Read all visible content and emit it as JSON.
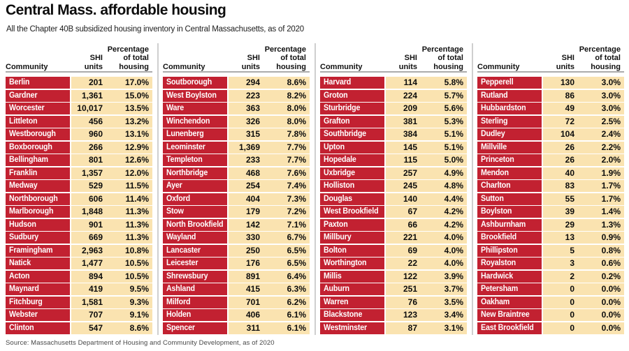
{
  "colors": {
    "row_red": "#c22131",
    "row_cream": "#fae3b0",
    "divider_gray": "#cfcfcf",
    "header_rule_gray": "#ababab"
  },
  "table_headers": {
    "community": "Community",
    "shi": [
      "SHI",
      "units"
    ],
    "pct": [
      "Percentage",
      "of total",
      "housing"
    ]
  },
  "chart_data": {
    "type": "table",
    "title": "Central Mass. affordable housing",
    "subtitle": "All the Chapter 40B subsidized housing inventory in Central Massachusetts, as of 2020",
    "columns": [
      "Community",
      "SHI units",
      "Percentage of total housing"
    ],
    "source": "Source: Massachusetts Department of Housing and Community Development, as of 2020",
    "column_groups": [
      {
        "rows": [
          [
            "Berlin",
            "201",
            "17.0%"
          ],
          [
            "Gardner",
            "1,361",
            "15.0%"
          ],
          [
            "Worcester",
            "10,017",
            "13.5%"
          ],
          [
            "Littleton",
            "456",
            "13.2%"
          ],
          [
            "Westborough",
            "960",
            "13.1%"
          ],
          [
            "Boxborough",
            "266",
            "12.9%"
          ],
          [
            "Bellingham",
            "801",
            "12.6%"
          ],
          [
            "Franklin",
            "1,357",
            "12.0%"
          ],
          [
            "Medway",
            "529",
            "11.5%"
          ],
          [
            "Northborough",
            "606",
            "11.4%"
          ],
          [
            "Marlborough",
            "1,848",
            "11.3%"
          ],
          [
            "Hudson",
            "901",
            "11.3%"
          ],
          [
            "Sudbury",
            "669",
            "11.3%"
          ],
          [
            "Framingham",
            "2,963",
            "10.8%"
          ],
          [
            "Natick",
            "1,477",
            "10.5%"
          ],
          [
            "Acton",
            "894",
            "10.5%"
          ],
          [
            "Maynard",
            "419",
            "9.5%"
          ],
          [
            "Fitchburg",
            "1,581",
            "9.3%"
          ],
          [
            "Webster",
            "707",
            "9.1%"
          ],
          [
            "Clinton",
            "547",
            "8.6%"
          ]
        ]
      },
      {
        "rows": [
          [
            "Soutborough",
            "294",
            "8.6%"
          ],
          [
            "West Boylston",
            "223",
            "8.2%"
          ],
          [
            "Ware",
            "363",
            "8.0%"
          ],
          [
            "Winchendon",
            "326",
            "8.0%"
          ],
          [
            "Lunenberg",
            "315",
            "7.8%"
          ],
          [
            "Leominster",
            "1,369",
            "7.7%"
          ],
          [
            "Templeton",
            "233",
            "7.7%"
          ],
          [
            "Northbridge",
            "468",
            "7.6%"
          ],
          [
            "Ayer",
            "254",
            "7.4%"
          ],
          [
            "Oxford",
            "404",
            "7.3%"
          ],
          [
            "Stow",
            "179",
            "7.2%"
          ],
          [
            "North Brookfield",
            "142",
            "7.1%"
          ],
          [
            "Wayland",
            "330",
            "6.7%"
          ],
          [
            "Lancaster",
            "250",
            "6.5%"
          ],
          [
            "Leicester",
            "176",
            "6.5%"
          ],
          [
            "Shrewsbury",
            "891",
            "6.4%"
          ],
          [
            "Ashland",
            "415",
            "6.3%"
          ],
          [
            "Milford",
            "701",
            "6.2%"
          ],
          [
            "Holden",
            "406",
            "6.1%"
          ],
          [
            "Spencer",
            "311",
            "6.1%"
          ]
        ]
      },
      {
        "rows": [
          [
            "Harvard",
            "114",
            "5.8%"
          ],
          [
            "Groton",
            "224",
            "5.7%"
          ],
          [
            "Sturbridge",
            "209",
            "5.6%"
          ],
          [
            "Grafton",
            "381",
            "5.3%"
          ],
          [
            "Southbridge",
            "384",
            "5.1%"
          ],
          [
            "Upton",
            "145",
            "5.1%"
          ],
          [
            "Hopedale",
            "115",
            "5.0%"
          ],
          [
            "Uxbridge",
            "257",
            "4.9%"
          ],
          [
            "Holliston",
            "245",
            "4.8%"
          ],
          [
            "Douglas",
            "140",
            "4.4%"
          ],
          [
            "West Brookfield",
            "67",
            "4.2%"
          ],
          [
            "Paxton",
            "66",
            "4.2%"
          ],
          [
            "Millbury",
            "221",
            "4.0%"
          ],
          [
            "Bolton",
            "69",
            "4.0%"
          ],
          [
            "Worthington",
            "22",
            "4.0%"
          ],
          [
            "Millis",
            "122",
            "3.9%"
          ],
          [
            "Auburn",
            "251",
            "3.7%"
          ],
          [
            "Warren",
            "76",
            "3.5%"
          ],
          [
            "Blackstone",
            "123",
            "3.4%"
          ],
          [
            "Westminster",
            "87",
            "3.1%"
          ]
        ]
      },
      {
        "rows": [
          [
            "Pepperell",
            "130",
            "3.0%"
          ],
          [
            "Rutland",
            "86",
            "3.0%"
          ],
          [
            "Hubbardston",
            "49",
            "3.0%"
          ],
          [
            "Sterling",
            "72",
            "2.5%"
          ],
          [
            "Dudley",
            "104",
            "2.4%"
          ],
          [
            "Millville",
            "26",
            "2.2%"
          ],
          [
            "Princeton",
            "26",
            "2.0%"
          ],
          [
            "Mendon",
            "40",
            "1.9%"
          ],
          [
            "Charlton",
            "83",
            "1.7%"
          ],
          [
            "Sutton",
            "55",
            "1.7%"
          ],
          [
            "Boylston",
            "39",
            "1.4%"
          ],
          [
            "Ashburnham",
            "29",
            "1.3%"
          ],
          [
            "Brookfield",
            "13",
            "0.9%"
          ],
          [
            "Phillipston",
            "5",
            "0.8%"
          ],
          [
            "Royalston",
            "3",
            "0.6%"
          ],
          [
            "Hardwick",
            "2",
            "0.2%"
          ],
          [
            "Petersham",
            "0",
            "0.0%"
          ],
          [
            "Oakham",
            "0",
            "0.0%"
          ],
          [
            "New Braintree",
            "0",
            "0.0%"
          ],
          [
            "East Brookfield",
            "0",
            "0.0%"
          ]
        ]
      }
    ]
  }
}
